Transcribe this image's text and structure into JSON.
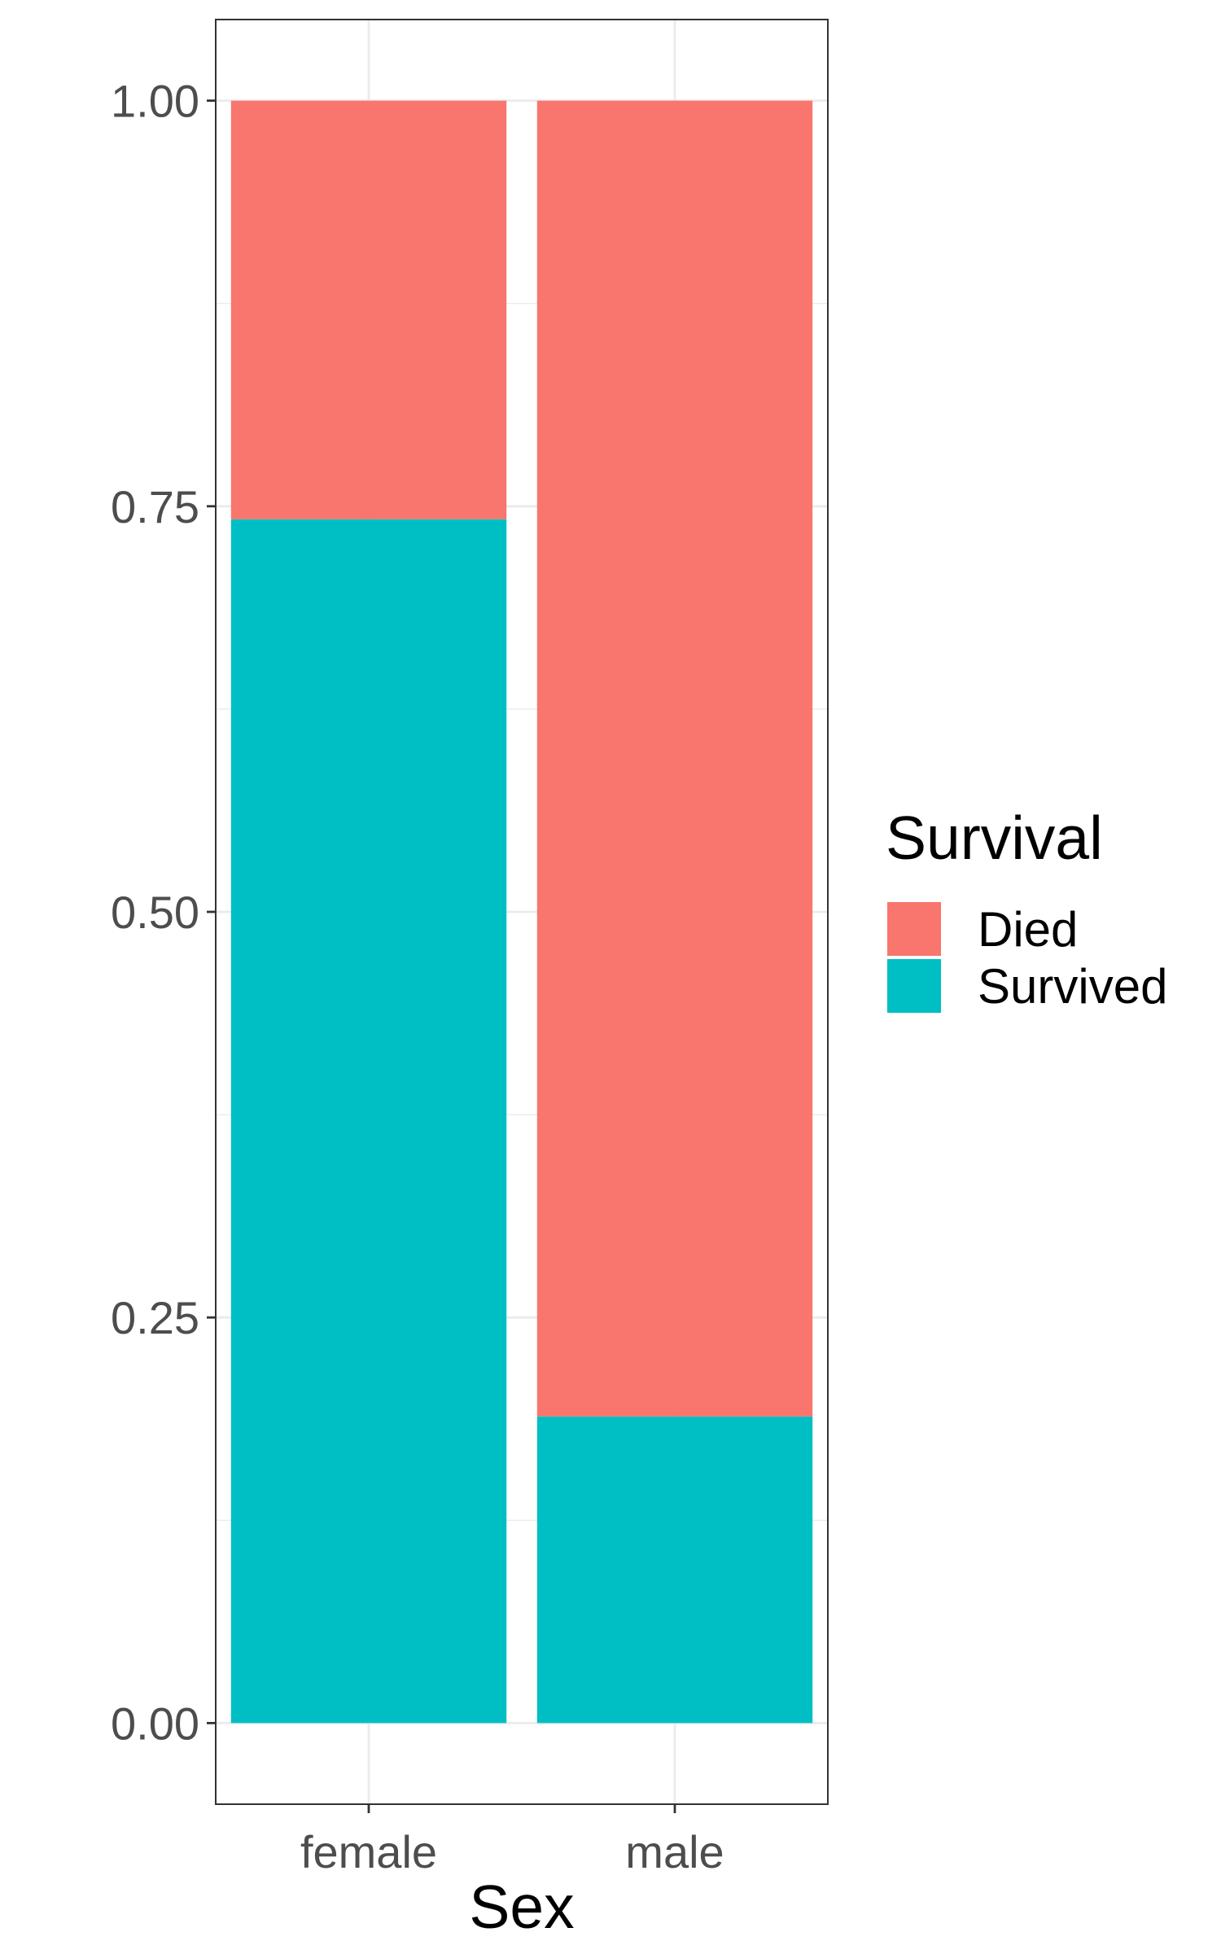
{
  "chart_data": {
    "type": "bar",
    "stacked": true,
    "categories": [
      "female",
      "male"
    ],
    "series": [
      {
        "name": "Died",
        "values": [
          0.258,
          0.811
        ],
        "color": "#F8766D"
      },
      {
        "name": "Survived",
        "values": [
          0.742,
          0.189
        ],
        "color": "#00BFC4"
      }
    ],
    "stack_order": [
      "Survived",
      "Died"
    ],
    "xlabel": "Sex",
    "ylabel": "",
    "ylim": [
      -0.05,
      1.05
    ],
    "yticks": [
      0.0,
      0.25,
      0.5,
      0.75,
      1.0
    ],
    "ytick_labels": [
      "0.00",
      "0.25",
      "0.50",
      "0.75",
      "1.00"
    ],
    "grid": true,
    "legend": {
      "title": "Survival",
      "placement": "right",
      "items": [
        "Died",
        "Survived"
      ]
    }
  }
}
